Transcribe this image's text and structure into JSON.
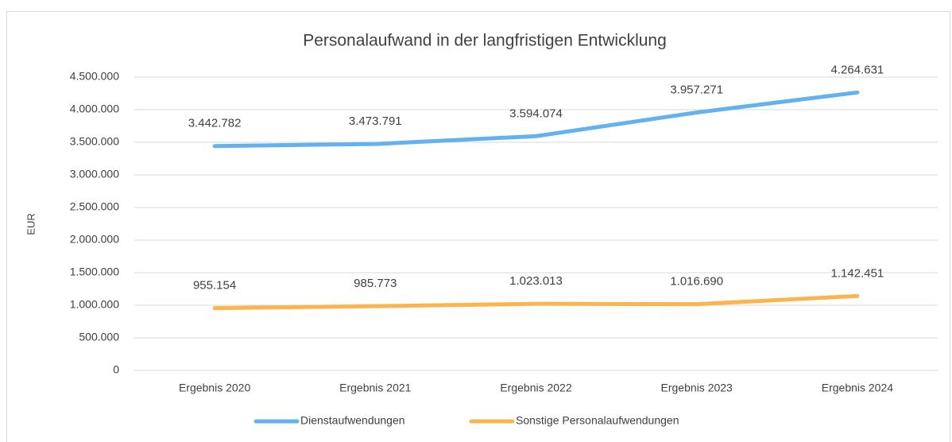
{
  "chart_data": {
    "type": "line",
    "title": "Personalaufwand in der langfristigen Entwicklung",
    "y_label": "EUR",
    "categories": [
      "Ergebnis 2020",
      "Ergebnis 2021",
      "Ergebnis 2022",
      "Ergebnis 2023",
      "Ergebnis 2024"
    ],
    "series": [
      {
        "name": "Dienstaufwendungen",
        "color": "#63b2ef",
        "values": [
          3442782,
          3473791,
          3594074,
          3957271,
          4264631
        ],
        "value_labels": [
          "3.442.782",
          "3.473.791",
          "3.594.074",
          "3.957.271",
          "4.264.631"
        ]
      },
      {
        "name": "Sonstige Personalaufwendungen",
        "color": "#fcb44f",
        "values": [
          955154,
          985773,
          1023013,
          1016690,
          1142451
        ],
        "value_labels": [
          "955.154",
          "985.773",
          "1.023.013",
          "1.016.690",
          "1.142.451"
        ]
      }
    ],
    "ylim": [
      0,
      4500000
    ],
    "yticks": [
      0,
      {
        "value": 500000,
        "label": "500.000"
      },
      {
        "value": 1000000,
        "label": "1.000.000"
      },
      {
        "value": 1500000,
        "label": "1.500.000"
      },
      {
        "value": 2000000,
        "label": "2.000.000"
      },
      {
        "value": 2500000,
        "label": "2.500.000"
      },
      {
        "value": 3000000,
        "label": "3.000.000"
      },
      {
        "value": 3500000,
        "label": "3.500.000"
      },
      {
        "value": 4000000,
        "label": "4.000.000"
      },
      {
        "value": 4500000,
        "label": "4.500.000"
      }
    ],
    "grid": true,
    "legend": "bottom"
  }
}
